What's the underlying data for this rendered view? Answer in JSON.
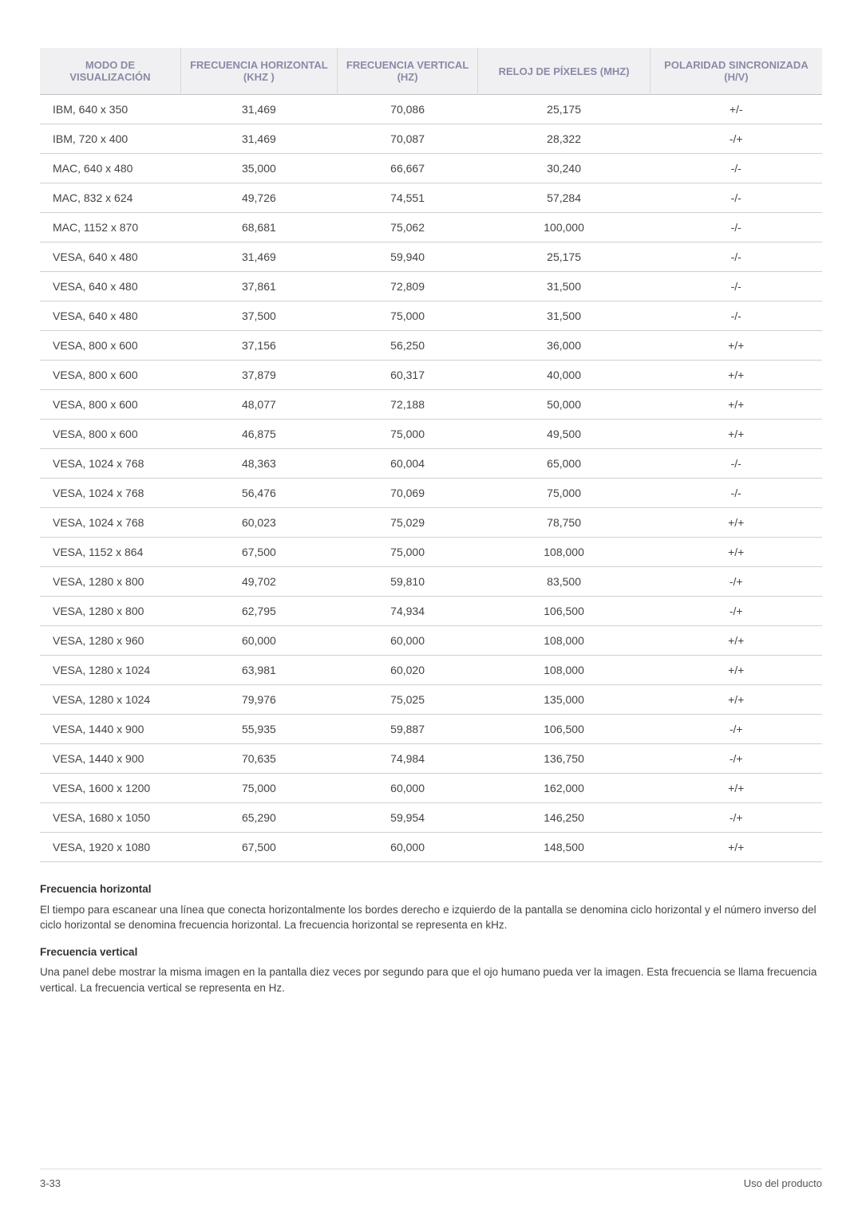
{
  "table": {
    "columns": [
      "MODO DE VISUALIZACIÓN",
      "FRECUENCIA HORIZONTAL (KHZ )",
      "FRECUENCIA VERTICAL (HZ)",
      "RELOJ DE PÍXELES (MHZ)",
      "POLARIDAD SINCRONIZADA (H/V)"
    ],
    "rows": [
      [
        "IBM, 640 x 350",
        "31,469",
        "70,086",
        "25,175",
        "+/-"
      ],
      [
        "IBM, 720 x 400",
        "31,469",
        "70,087",
        "28,322",
        "-/+"
      ],
      [
        "MAC, 640 x 480",
        "35,000",
        "66,667",
        "30,240",
        "-/-"
      ],
      [
        "MAC, 832 x 624",
        "49,726",
        "74,551",
        "57,284",
        "-/-"
      ],
      [
        "MAC, 1152 x 870",
        "68,681",
        "75,062",
        "100,000",
        "-/-"
      ],
      [
        "VESA, 640 x 480",
        "31,469",
        "59,940",
        "25,175",
        "-/-"
      ],
      [
        "VESA, 640 x 480",
        "37,861",
        "72,809",
        "31,500",
        "-/-"
      ],
      [
        "VESA, 640 x 480",
        "37,500",
        "75,000",
        "31,500",
        "-/-"
      ],
      [
        "VESA, 800 x 600",
        "37,156",
        "56,250",
        "36,000",
        "+/+"
      ],
      [
        "VESA, 800 x 600",
        "37,879",
        "60,317",
        "40,000",
        "+/+"
      ],
      [
        "VESA, 800 x 600",
        "48,077",
        "72,188",
        "50,000",
        "+/+"
      ],
      [
        "VESA, 800 x 600",
        "46,875",
        "75,000",
        "49,500",
        "+/+"
      ],
      [
        "VESA, 1024 x 768",
        "48,363",
        "60,004",
        "65,000",
        "-/-"
      ],
      [
        "VESA, 1024 x 768",
        "56,476",
        "70,069",
        "75,000",
        "-/-"
      ],
      [
        "VESA, 1024 x 768",
        "60,023",
        "75,029",
        "78,750",
        "+/+"
      ],
      [
        "VESA, 1152 x 864",
        "67,500",
        "75,000",
        "108,000",
        "+/+"
      ],
      [
        "VESA, 1280 x 800",
        "49,702",
        "59,810",
        "83,500",
        "-/+"
      ],
      [
        "VESA, 1280 x 800",
        "62,795",
        "74,934",
        "106,500",
        "-/+"
      ],
      [
        "VESA, 1280 x 960",
        "60,000",
        "60,000",
        "108,000",
        "+/+"
      ],
      [
        "VESA, 1280 x 1024",
        "63,981",
        "60,020",
        "108,000",
        "+/+"
      ],
      [
        "VESA, 1280 x 1024",
        "79,976",
        "75,025",
        "135,000",
        "+/+"
      ],
      [
        "VESA, 1440 x 900",
        "55,935",
        "59,887",
        "106,500",
        "-/+"
      ],
      [
        "VESA, 1440 x 900",
        "70,635",
        "74,984",
        "136,750",
        "-/+"
      ],
      [
        "VESA, 1600 x 1200",
        "75,000",
        "60,000",
        "162,000",
        "+/+"
      ],
      [
        "VESA, 1680 x 1050",
        "65,290",
        "59,954",
        "146,250",
        "-/+"
      ],
      [
        "VESA, 1920 x 1080",
        "67,500",
        "60,000",
        "148,500",
        "+/+"
      ]
    ],
    "header_bg": "#f0f0f2",
    "header_color": "#8a8aa8",
    "border_color": "#d0d0d0",
    "col_widths": [
      "18%",
      "20%",
      "18%",
      "22%",
      "22%"
    ]
  },
  "notes": {
    "h1_title": "Frecuencia horizontal",
    "h1_body": "El tiempo para escanear una línea que conecta horizontalmente los bordes derecho e izquierdo de la pantalla se denomina ciclo horizontal y el número inverso del ciclo horizontal se denomina frecuencia horizontal. La frecuencia horizontal se representa en kHz.",
    "h2_title": "Frecuencia vertical",
    "h2_body": "Una panel debe mostrar la misma imagen en la pantalla diez veces por segundo para que el ojo humano pueda ver la imagen. Esta frecuencia se llama frecuencia vertical. La frecuencia vertical se representa en Hz."
  },
  "footer": {
    "left": "3-33",
    "right": "Uso del producto"
  }
}
